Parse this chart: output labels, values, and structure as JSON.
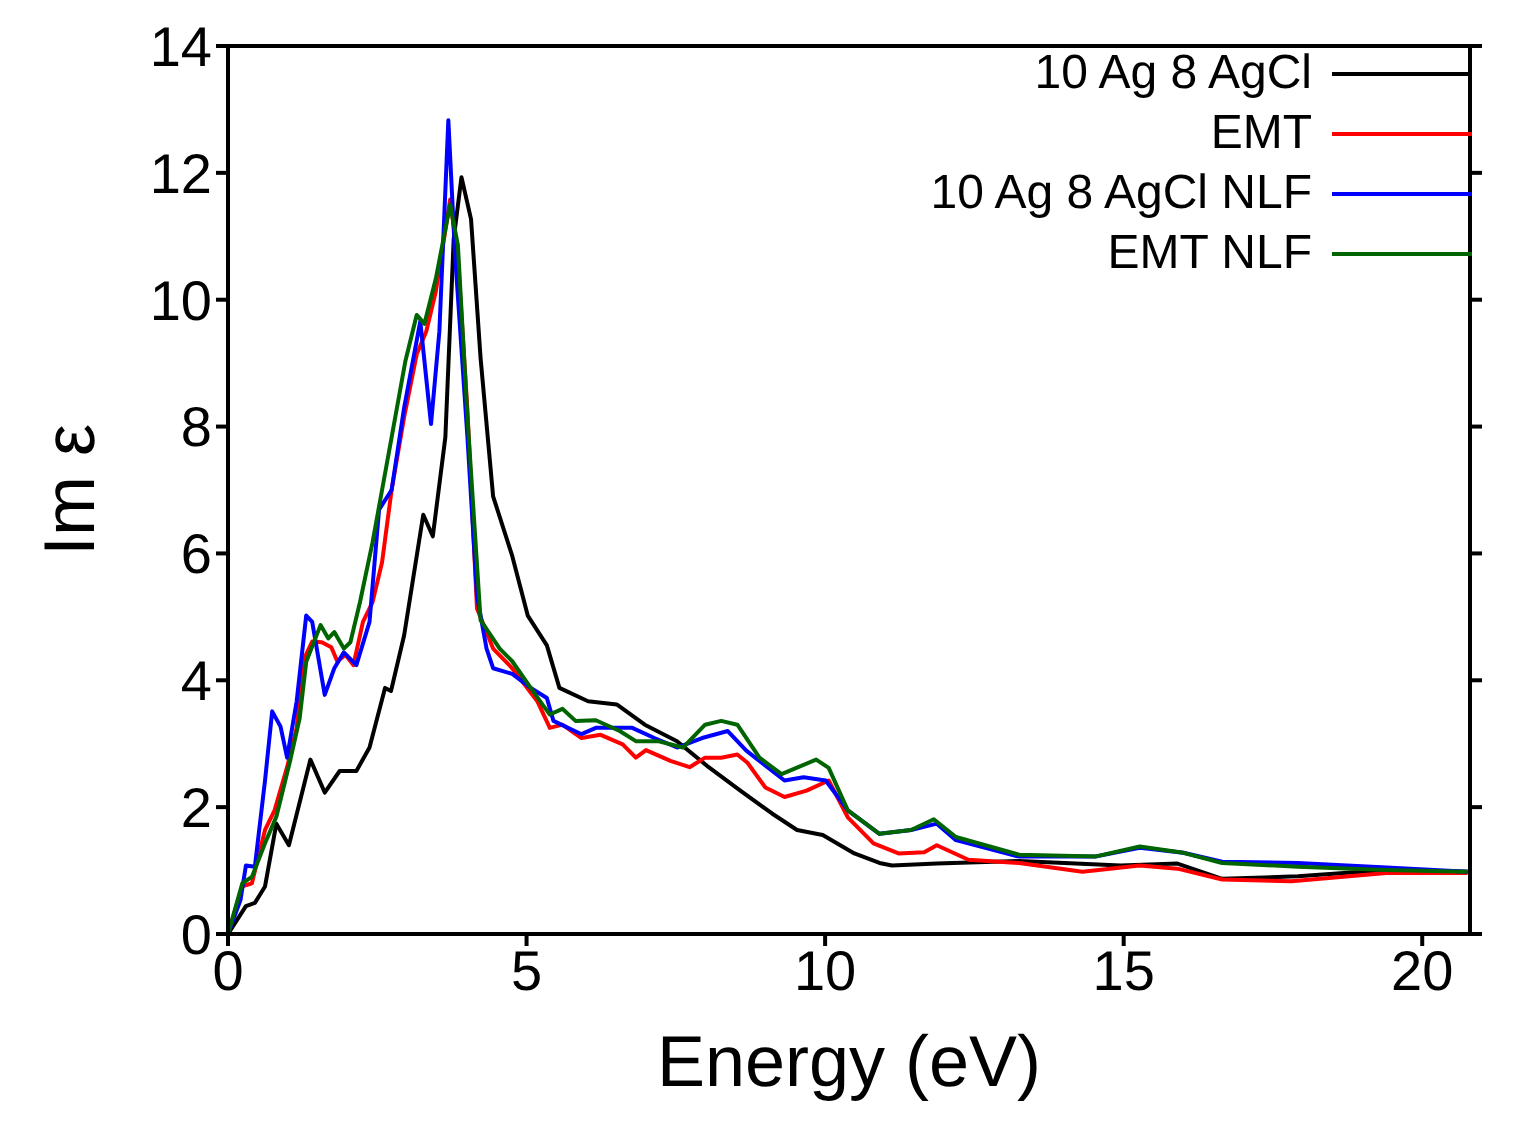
{
  "chart_data": {
    "type": "line",
    "xlabel": "Energy (eV)",
    "ylabel": "Im ε",
    "xlim": [
      0,
      20.8
    ],
    "xticks": [
      0,
      5,
      10,
      15,
      20
    ],
    "ylim": [
      0,
      14
    ],
    "yticks": [
      0,
      2,
      4,
      6,
      8,
      10,
      12,
      14
    ],
    "grid": false,
    "legend": "top right",
    "marker": "none",
    "line_style": "solid",
    "series": [
      {
        "name": "10 Ag 8 AgCl",
        "color": "#000000",
        "x": [
          0,
          0.3,
          0.45,
          0.62,
          0.81,
          1.02,
          1.38,
          1.62,
          1.87,
          2.15,
          2.37,
          2.63,
          2.73,
          2.95,
          3.27,
          3.43,
          3.64,
          3.78,
          3.91,
          4.07,
          4.23,
          4.44,
          4.76,
          5.02,
          5.34,
          5.55,
          6.03,
          6.51,
          6.98,
          7.52,
          8.05,
          8.58,
          9.11,
          9.53,
          9.96,
          10.49,
          10.91,
          11.12,
          11.87,
          13.25,
          14.95,
          15.9,
          16.65,
          17.92,
          19.4,
          20.76
        ],
        "values": [
          0,
          0.44,
          0.49,
          0.75,
          1.74,
          1.4,
          2.75,
          2.23,
          2.57,
          2.57,
          2.94,
          3.88,
          3.83,
          4.71,
          6.61,
          6.27,
          7.83,
          10.96,
          11.93,
          11.27,
          9.08,
          6.9,
          5.96,
          5.02,
          4.55,
          3.88,
          3.67,
          3.62,
          3.3,
          3.04,
          2.63,
          2.26,
          1.9,
          1.64,
          1.56,
          1.27,
          1.12,
          1.08,
          1.11,
          1.15,
          1.08,
          1.11,
          0.87,
          0.91,
          1.01,
          0.98
        ]
      },
      {
        "name": "EMT",
        "color": "#ff0000",
        "x": [
          0,
          0.24,
          0.4,
          0.62,
          0.78,
          0.99,
          1.15,
          1.25,
          1.41,
          1.57,
          1.73,
          1.83,
          1.97,
          2.1,
          2.26,
          2.42,
          2.58,
          2.74,
          2.95,
          3.16,
          3.32,
          3.48,
          3.72,
          3.85,
          4.01,
          4.17,
          4.44,
          4.76,
          5.18,
          5.39,
          5.6,
          5.92,
          6.24,
          6.61,
          6.83,
          7,
          7.41,
          7.73,
          7.99,
          8.26,
          8.53,
          8.7,
          9,
          9.32,
          9.69,
          10.06,
          10.38,
          10.81,
          11.23,
          11.66,
          11.87,
          12.4,
          13.25,
          14.31,
          15.27,
          15.9,
          16.65,
          17.81,
          19.4,
          20.76
        ],
        "values": [
          0,
          0.75,
          0.8,
          1.64,
          1.95,
          2.63,
          3.25,
          4.29,
          4.61,
          4.6,
          4.52,
          4.3,
          4.4,
          4.24,
          4.92,
          5.23,
          5.86,
          7,
          8.15,
          9.14,
          9.5,
          10.13,
          11.58,
          10.65,
          8.25,
          5.13,
          4.5,
          4.19,
          3.67,
          3.25,
          3.3,
          3.09,
          3.14,
          2.99,
          2.78,
          2.9,
          2.73,
          2.63,
          2.78,
          2.78,
          2.83,
          2.7,
          2.31,
          2.16,
          2.26,
          2.42,
          1.84,
          1.43,
          1.27,
          1.29,
          1.4,
          1.17,
          1.12,
          0.98,
          1.08,
          1.03,
          0.86,
          0.83,
          0.96,
          0.96
        ]
      },
      {
        "name": "10 Ag 8 AgCl NLF",
        "color": "#0000ff",
        "x": [
          0,
          0.21,
          0.3,
          0.45,
          0.62,
          0.74,
          0.88,
          0.99,
          1.15,
          1.31,
          1.41,
          1.62,
          1.78,
          1.94,
          2.15,
          2.37,
          2.53,
          2.74,
          2.95,
          3.22,
          3.4,
          3.54,
          3.69,
          3.8,
          4.01,
          4.17,
          4.33,
          4.44,
          4.76,
          5.07,
          5.34,
          5.45,
          5.92,
          6.16,
          6.77,
          7.14,
          7.52,
          7.94,
          8.37,
          8.68,
          9.32,
          9.64,
          10.01,
          10.38,
          10.91,
          11.44,
          11.87,
          12.19,
          13.25,
          14.52,
          15.27,
          16,
          16.65,
          17.92,
          19.4,
          20.76
        ],
        "values": [
          0,
          0.54,
          1.08,
          1.06,
          2.42,
          3.51,
          3.27,
          2.78,
          3.67,
          5.02,
          4.92,
          3.77,
          4.19,
          4.44,
          4.24,
          4.92,
          6.69,
          7,
          8.3,
          9.66,
          8.04,
          9.5,
          12.83,
          10.75,
          7.83,
          5.33,
          4.5,
          4.19,
          4.1,
          3.88,
          3.72,
          3.36,
          3.15,
          3.25,
          3.25,
          3.09,
          2.94,
          3.09,
          3.2,
          2.89,
          2.42,
          2.47,
          2.42,
          1.95,
          1.58,
          1.64,
          1.74,
          1.48,
          1.22,
          1.22,
          1.36,
          1.28,
          1.14,
          1.12,
          1.05,
          0.98
        ]
      },
      {
        "name": "EMT NLF",
        "color": "#006400",
        "x": [
          0,
          0.24,
          0.4,
          0.62,
          0.81,
          1.04,
          1.2,
          1.31,
          1.55,
          1.68,
          1.78,
          1.94,
          2.05,
          2.21,
          2.42,
          2.58,
          2.74,
          2.97,
          3.16,
          3.29,
          3.48,
          3.72,
          3.85,
          4.01,
          4.23,
          4.55,
          4.76,
          5.07,
          5.28,
          5.39,
          5.6,
          5.82,
          6.16,
          6.56,
          6.83,
          7.2,
          7.62,
          7.99,
          8.26,
          8.53,
          8.9,
          9.27,
          9.85,
          10.06,
          10.38,
          10.91,
          11.44,
          11.82,
          12.19,
          13.25,
          14.52,
          15.27,
          16,
          16.65,
          17.92,
          19.4,
          20.76
        ],
        "values": [
          0,
          0.8,
          0.9,
          1.43,
          1.85,
          2.73,
          3.4,
          4.29,
          4.87,
          4.66,
          4.76,
          4.5,
          4.6,
          5.23,
          6.17,
          7,
          7.83,
          9.03,
          9.76,
          9.62,
          10.33,
          11.5,
          10.86,
          8.15,
          4.95,
          4.5,
          4.3,
          3.88,
          3.6,
          3.46,
          3.55,
          3.36,
          3.37,
          3.2,
          3.04,
          3.04,
          2.94,
          3.3,
          3.36,
          3.3,
          2.78,
          2.52,
          2.75,
          2.62,
          1.95,
          1.58,
          1.64,
          1.81,
          1.53,
          1.25,
          1.22,
          1.38,
          1.28,
          1.12,
          1.06,
          1.01,
          0.98
        ]
      }
    ]
  }
}
